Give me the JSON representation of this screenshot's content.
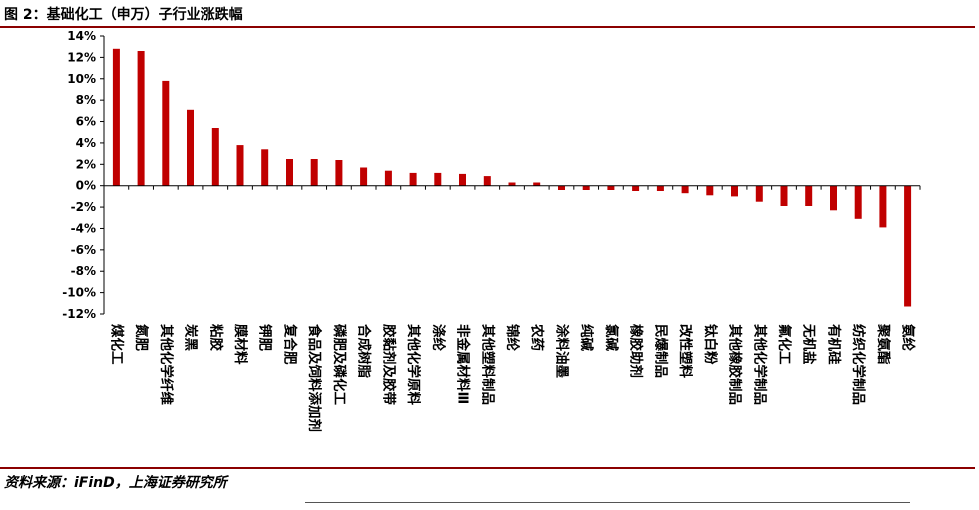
{
  "header": {
    "figure_title": "图 2：基础化工（申万）子行业涨跌幅"
  },
  "footer": {
    "source": "资料来源：iFinD，上海证券研究所"
  },
  "chart_data": {
    "type": "bar",
    "title": "",
    "xlabel": "",
    "ylabel": "",
    "ylim": [
      -12,
      14
    ],
    "yticks": [
      14,
      12,
      10,
      8,
      6,
      4,
      2,
      0,
      -2,
      -4,
      -6,
      -8,
      -10,
      -12
    ],
    "ytick_format": "percent",
    "grid": false,
    "legend": "none",
    "bar_color": "#c00000",
    "categories": [
      "煤化工",
      "氮肥",
      "其他化学纤维",
      "炭黑",
      "粘胶",
      "膜材料",
      "钾肥",
      "复合肥",
      "食品及饲料添加剂",
      "磷肥及磷化工",
      "合成树脂",
      "胶黏剂及胶带",
      "其他化学原料",
      "涤纶",
      "非金属材料Ⅲ",
      "其他塑料制品",
      "锦纶",
      "农药",
      "涂料油墨",
      "纯碱",
      "氯碱",
      "橡胶助剂",
      "民爆制品",
      "改性塑料",
      "钛白粉",
      "其他橡胶制品",
      "其他化学制品",
      "氟化工",
      "无机盐",
      "有机硅",
      "纺织化学制品",
      "聚氨酯",
      "氨纶"
    ],
    "values": [
      12.8,
      12.6,
      9.8,
      7.1,
      5.4,
      3.8,
      3.4,
      2.5,
      2.5,
      2.4,
      1.7,
      1.4,
      1.2,
      1.2,
      1.1,
      0.9,
      0.3,
      0.3,
      -0.4,
      -0.4,
      -0.4,
      -0.5,
      -0.5,
      -0.7,
      -0.9,
      -1.0,
      -1.5,
      -1.9,
      -1.9,
      -2.3,
      -3.1,
      -3.9,
      -11.3
    ]
  }
}
